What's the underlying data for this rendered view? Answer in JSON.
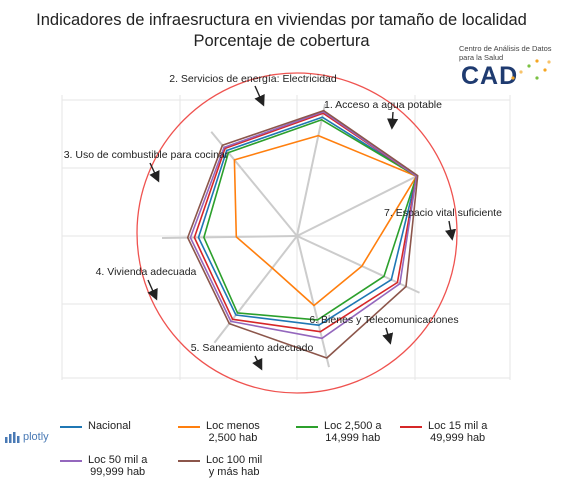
{
  "title": {
    "line1": "Indicadores de infraesructura en viviendas por tamaño de localidad",
    "line2": "Porcentaje de cobertura"
  },
  "logo": {
    "line1": "Centro de Análisis de Datos",
    "line2": "para la Salud",
    "word": "CAD",
    "dot_colors": [
      "#f5a623",
      "#f8c36a",
      "#7ac143",
      "#f5a623",
      "#f5a623",
      "#7ac143",
      "#f8c36a"
    ]
  },
  "badge": {
    "icon": "bar-chart-icon",
    "label": "plotly"
  },
  "colors": {
    "reference_circle": "#ef5350",
    "grid": "#e6e6e6",
    "spokes": "#cccccc"
  },
  "chart_data": {
    "type": "radar",
    "axes": [
      "1. Acceso a agua potable",
      "2. Servicios de energía: Electricidad",
      "3. Uso de combustible para cocinar",
      "4. Vivienda adecuada",
      "5. Saneamiento adecuado",
      "6. Bienes y Telecomunicaciones",
      "7. Espacio vital suficiente"
    ],
    "range": [
      0,
      100
    ],
    "series": [
      {
        "name": "Nacional",
        "color": "#1f77b4",
        "values": [
          90,
          99,
          77,
          68,
          74,
          73,
          82
        ]
      },
      {
        "name": "Loc menos\n2,500 hab",
        "color": "#ff7f0e",
        "values": [
          76,
          99,
          53,
          53,
          30,
          45,
          73
        ]
      },
      {
        "name": "Loc 2,500 a\n14,999 hab",
        "color": "#2ca02c",
        "values": [
          88,
          99,
          71,
          64,
          72,
          69,
          80
        ]
      },
      {
        "name": "Loc 15 mil a\n49,999 hab",
        "color": "#d62728",
        "values": [
          93,
          99,
          82,
          73,
          78,
          76,
          84
        ]
      },
      {
        "name": "Loc 50 mil a\n99,999 hab",
        "color": "#9467bd",
        "values": [
          94,
          99,
          84,
          78,
          80,
          79,
          85
        ]
      },
      {
        "name": "Loc 100 mil\ny más hab",
        "color": "#8c564b",
        "values": [
          95,
          100,
          89,
          93,
          82,
          81,
          87
        ]
      }
    ]
  }
}
